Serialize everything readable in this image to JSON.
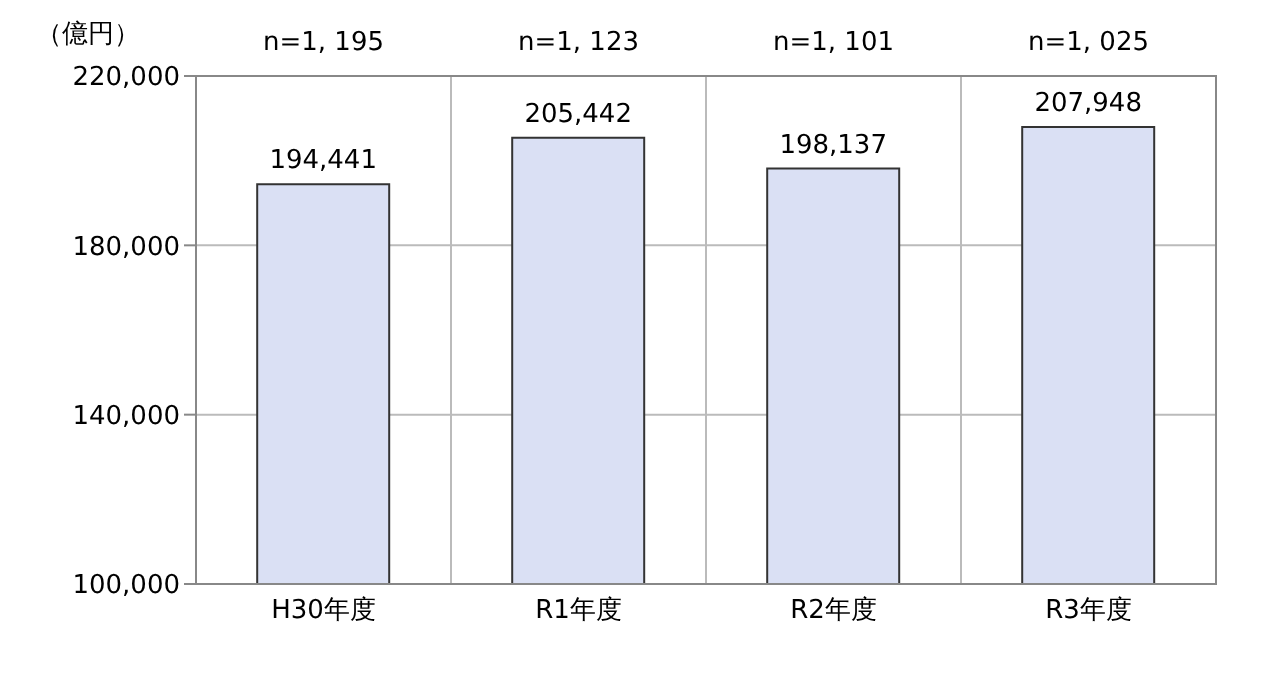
{
  "chart_data": {
    "type": "bar",
    "ylabel": "（億円）",
    "categories": [
      "H30年度",
      "R1年度",
      "R2年度",
      "R3年度"
    ],
    "values": [
      194441,
      205442,
      198137,
      207948
    ],
    "color": "#dae0f4",
    "value_labels": [
      "194,441",
      "205,442",
      "198,137",
      "207,948"
    ],
    "ylim": [
      100000,
      220000
    ],
    "yticks": [
      {
        "value": 100000,
        "label": "100,000"
      },
      {
        "value": 140000,
        "label": "140,000"
      },
      {
        "value": 180000,
        "label": "180,000"
      },
      {
        "value": 220000,
        "label": "220,000"
      }
    ],
    "grid": true,
    "annotations": [
      "n=1, 195",
      "n=1, 123",
      "n=1, 101",
      "n=1, 025"
    ]
  }
}
